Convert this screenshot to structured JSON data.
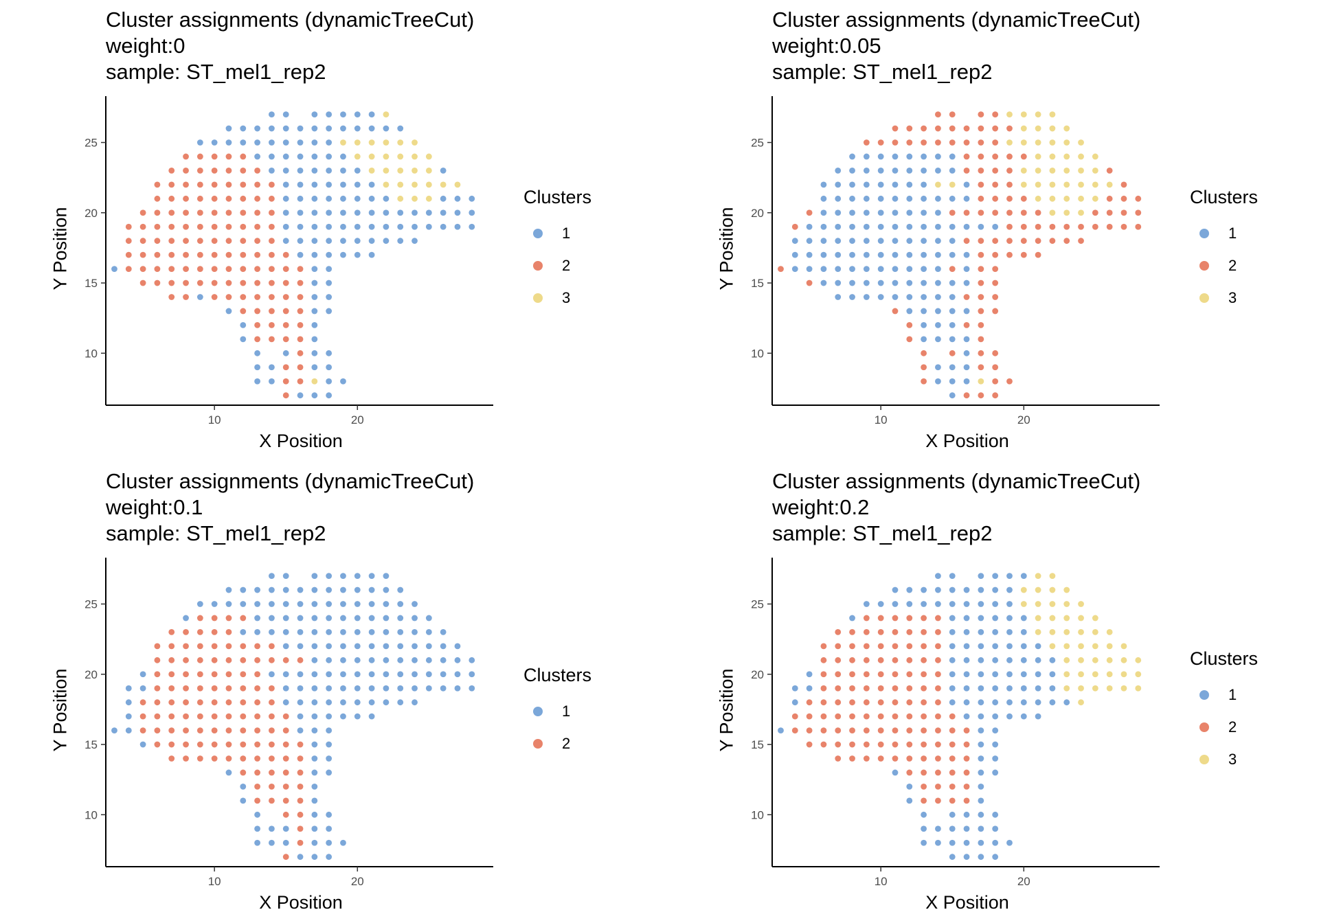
{
  "colors": {
    "1": "#7BA7D9",
    "2": "#E8836A",
    "3": "#EEDA8A"
  },
  "spots": {
    "rows": [
      {
        "y": 27,
        "xs": [
          14,
          15,
          17,
          18,
          19,
          20,
          21,
          22
        ]
      },
      {
        "y": 26,
        "xs": [
          11,
          12,
          13,
          14,
          15,
          16,
          17,
          18,
          19,
          20,
          21,
          22,
          23
        ]
      },
      {
        "y": 25,
        "xs": [
          9,
          10,
          11,
          12,
          13,
          14,
          15,
          16,
          17,
          18,
          19,
          20,
          21,
          22,
          23,
          24
        ]
      },
      {
        "y": 24,
        "xs": [
          8,
          9,
          10,
          11,
          12,
          13,
          14,
          15,
          16,
          17,
          18,
          19,
          20,
          21,
          22,
          23,
          24,
          25
        ]
      },
      {
        "y": 23,
        "xs": [
          7,
          8,
          9,
          10,
          11,
          12,
          13,
          14,
          15,
          16,
          17,
          18,
          19,
          20,
          21,
          22,
          23,
          24,
          25,
          26
        ]
      },
      {
        "y": 22,
        "xs": [
          6,
          7,
          8,
          9,
          10,
          11,
          12,
          13,
          14,
          15,
          16,
          17,
          18,
          19,
          20,
          21,
          22,
          23,
          24,
          25,
          26,
          27
        ]
      },
      {
        "y": 21,
        "xs": [
          6,
          7,
          8,
          9,
          10,
          11,
          12,
          13,
          14,
          15,
          16,
          17,
          18,
          19,
          20,
          21,
          22,
          23,
          24,
          25,
          26,
          27,
          28
        ]
      },
      {
        "y": 20,
        "xs": [
          5,
          6,
          7,
          8,
          9,
          10,
          11,
          12,
          13,
          14,
          15,
          16,
          17,
          18,
          19,
          20,
          21,
          22,
          23,
          24,
          25,
          26,
          27,
          28
        ]
      },
      {
        "y": 19,
        "xs": [
          4,
          5,
          6,
          7,
          8,
          9,
          10,
          11,
          12,
          13,
          14,
          15,
          16,
          17,
          18,
          19,
          20,
          21,
          22,
          23,
          24,
          25,
          26,
          27,
          28
        ]
      },
      {
        "y": 18,
        "xs": [
          4,
          5,
          6,
          7,
          8,
          9,
          10,
          11,
          12,
          13,
          14,
          15,
          16,
          17,
          18,
          19,
          20,
          21,
          22,
          23,
          24
        ]
      },
      {
        "y": 17,
        "xs": [
          4,
          5,
          6,
          7,
          8,
          9,
          10,
          11,
          12,
          13,
          14,
          15,
          16,
          17,
          18,
          19,
          20,
          21
        ]
      },
      {
        "y": 16,
        "xs": [
          3,
          4,
          5,
          6,
          7,
          8,
          9,
          10,
          11,
          12,
          13,
          14,
          15,
          16,
          17,
          18
        ]
      },
      {
        "y": 15,
        "xs": [
          5,
          6,
          7,
          8,
          9,
          10,
          11,
          12,
          13,
          14,
          15,
          16,
          17,
          18
        ]
      },
      {
        "y": 14,
        "xs": [
          7,
          8,
          9,
          10,
          11,
          12,
          13,
          14,
          15,
          16,
          17,
          18
        ]
      },
      {
        "y": 13,
        "xs": [
          11,
          12,
          13,
          14,
          15,
          16,
          17,
          18
        ]
      },
      {
        "y": 12,
        "xs": [
          12,
          13,
          14,
          15,
          16,
          17
        ]
      },
      {
        "y": 11,
        "xs": [
          12,
          13,
          14,
          15,
          16,
          17
        ]
      },
      {
        "y": 10,
        "xs": [
          13,
          15,
          16,
          17,
          18
        ]
      },
      {
        "y": 9,
        "xs": [
          13,
          14,
          15,
          16,
          17,
          18
        ]
      },
      {
        "y": 8,
        "xs": [
          13,
          14,
          15,
          16,
          17,
          18,
          19
        ]
      },
      {
        "y": 7,
        "xs": [
          15,
          16,
          17,
          18
        ]
      }
    ]
  },
  "chart_data": [
    {
      "type": "scatter",
      "title": [
        "Cluster assignments (dynamicTreeCut)",
        "weight:0",
        "sample: ST_mel1_rep2"
      ],
      "xlabel": "X Position",
      "ylabel": "Y Position",
      "xlim": [
        2.4,
        29.5
      ],
      "ylim": [
        6.3,
        28.3
      ],
      "xticks": [
        10,
        20
      ],
      "yticks": [
        10,
        15,
        20,
        25
      ],
      "legend": {
        "title": "Clusters",
        "position": "right",
        "labels": [
          "1",
          "2",
          "3"
        ]
      },
      "assignments": [
        "11111113",
        "1111111111111",
        "1111111111333333",
        "222221111111333333",
        "22222221111111333331",
        "2222222221111111333333",
        "22222222211111111333111",
        "222222222211111111111111",
        "2222222222211111111111111",
        "222222222221111111111",
        "222222222222111111",
        "1222222222222211",
        "22222222222211",
        "221222222211",
        "12222211",
        "122221",
        "122221",
        "11211",
        "112211",
        "1122311",
        "2111"
      ]
    },
    {
      "type": "scatter",
      "title": [
        "Cluster assignments (dynamicTreeCut)",
        "weight:0.05",
        "sample: ST_mel1_rep2"
      ],
      "xlabel": "X Position",
      "ylabel": "Y Position",
      "xlim": [
        2.4,
        29.5
      ],
      "ylim": [
        6.3,
        28.3
      ],
      "xticks": [
        10,
        20
      ],
      "yticks": [
        10,
        15,
        20,
        25
      ],
      "legend": {
        "title": "Clusters",
        "position": "right",
        "labels": [
          "1",
          "2",
          "3"
        ]
      },
      "assignments": [
        "22223333",
        "2222222223333",
        "2222222222333333",
        "111111112222233333",
        "11111111122223333332",
        "1111111133122233333332",
        "11111111111222233333222",
        "211111111122222223332222",
        "2111111111111112222222222",
        "111111111111222222222",
        "111111111111122222",
        "2111111111112122",
        "21111111111122",
        "111111111222",
        "21111122",
        "211122",
        "211112",
        "22122",
        "211122",
        "2111322",
        "1222"
      ]
    },
    {
      "type": "scatter",
      "title": [
        "Cluster assignments (dynamicTreeCut)",
        "weight:0.1",
        "sample: ST_mel1_rep2"
      ],
      "xlabel": "X Position",
      "ylabel": "Y Position",
      "xlim": [
        2.4,
        29.5
      ],
      "ylim": [
        6.3,
        28.3
      ],
      "xticks": [
        10,
        20
      ],
      "yticks": [
        10,
        15,
        20,
        25
      ],
      "legend": {
        "title": "Clusters",
        "position": "right",
        "labels": [
          "1",
          "2"
        ]
      },
      "assignments": [
        "11111111",
        "1111111111111",
        "1111111111111111",
        "122221111111111111",
        "22222111111111111111",
        "2222222221111111111111",
        "22222222222111111111111",
        "122222222111111111111111",
        "1122222222211111111111111",
        "122222222221111111111",
        "122222222222111111",
        "1122222222222111",
        "12222222222211",
        "222222222211",
        "12222211",
        "122221",
        "122221",
        "12211",
        "111211",
        "1112111",
        "2111"
      ]
    },
    {
      "type": "scatter",
      "title": [
        "Cluster assignments (dynamicTreeCut)",
        "weight:0.2",
        "sample: ST_mel1_rep2"
      ],
      "xlabel": "X Position",
      "ylabel": "Y Position",
      "xlim": [
        2.4,
        29.5
      ],
      "ylim": [
        6.3,
        28.3
      ],
      "xticks": [
        10,
        20
      ],
      "yticks": [
        10,
        15,
        20,
        25
      ],
      "legend": {
        "title": "Clusters",
        "position": "right",
        "labels": [
          "1",
          "2",
          "3"
        ]
      },
      "assignments": [
        "11111133",
        "1111111113333",
        "1111111111133333",
        "122222211111133333",
        "22222222111111333333",
        "2222222221111111333333",
        "22222222211111111333333",
        "122222222211111111333333",
        "1122222222211111111333333",
        "122222222221111111113",
        "222222222222111111",
        "1222222222222211",
        "22222222222211",
        "222222222211",
        "12222211",
        "122221",
        "122221",
        "11111",
        "111111",
        "1111111",
        "1111"
      ]
    }
  ]
}
